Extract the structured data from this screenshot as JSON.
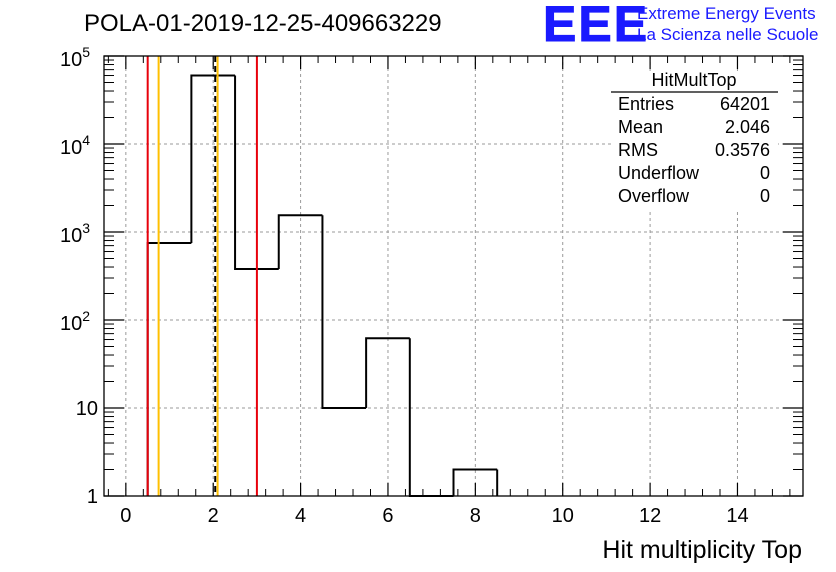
{
  "header": {
    "title": "POLA-01-2019-12-25-409663229",
    "logo_text": "EEE",
    "logo_line1": "Extreme Energy Events",
    "logo_line2": "La Scienza nelle Scuole"
  },
  "stats": {
    "name": "HitMultTop",
    "rows": [
      {
        "label": "Entries",
        "value": "64201"
      },
      {
        "label": "Mean",
        "value": "2.046"
      },
      {
        "label": "RMS",
        "value": "0.3576"
      },
      {
        "label": "Underflow",
        "value": "0"
      },
      {
        "label": "Overflow",
        "value": "0"
      }
    ]
  },
  "chart_data": {
    "type": "histogram",
    "title": "POLA-01-2019-12-25-409663229",
    "xlabel": "Hit multiplicity Top",
    "ylabel": "",
    "xlim": [
      -0.5,
      15.5
    ],
    "ylim": [
      1,
      100000
    ],
    "yscale": "log",
    "grid": true,
    "bins": [
      {
        "low": 0.5,
        "high": 1.5,
        "count": 750
      },
      {
        "low": 1.5,
        "high": 2.5,
        "count": 60000
      },
      {
        "low": 2.5,
        "high": 3.5,
        "count": 380
      },
      {
        "low": 3.5,
        "high": 4.5,
        "count": 1550
      },
      {
        "low": 4.5,
        "high": 5.5,
        "count": 10
      },
      {
        "low": 5.5,
        "high": 6.5,
        "count": 62
      },
      {
        "low": 6.5,
        "high": 7.5,
        "count": 0
      },
      {
        "low": 7.5,
        "high": 8.5,
        "count": 2
      }
    ],
    "x_ticks": [
      {
        "value": 0,
        "label": "0"
      },
      {
        "value": 2,
        "label": "2"
      },
      {
        "value": 4,
        "label": "4"
      },
      {
        "value": 6,
        "label": "6"
      },
      {
        "value": 8,
        "label": "8"
      },
      {
        "value": 10,
        "label": "10"
      },
      {
        "value": 12,
        "label": "12"
      },
      {
        "value": 14,
        "label": "14"
      }
    ],
    "y_ticks": [
      {
        "value": 1,
        "label": "1"
      },
      {
        "value": 10,
        "label": "10"
      },
      {
        "value": 100,
        "base": "10",
        "exp": "2"
      },
      {
        "value": 1000,
        "base": "10",
        "exp": "3"
      },
      {
        "value": 10000,
        "base": "10",
        "exp": "4"
      },
      {
        "value": 100000,
        "base": "10",
        "exp": "5"
      }
    ],
    "vertical_lines": [
      {
        "name": "red-line-low",
        "x": 0.5,
        "color": "#e8000b",
        "dashed": false
      },
      {
        "name": "orange-line-low",
        "x": 0.75,
        "color": "#ffc000",
        "dashed": false
      },
      {
        "name": "mean-line",
        "x": 2.046,
        "color": "#000000",
        "dashed": true
      },
      {
        "name": "orange-line-high",
        "x": 2.1,
        "color": "#ffc000",
        "dashed": false
      },
      {
        "name": "red-line-high",
        "x": 3.0,
        "color": "#e8000b",
        "dashed": false
      }
    ]
  }
}
